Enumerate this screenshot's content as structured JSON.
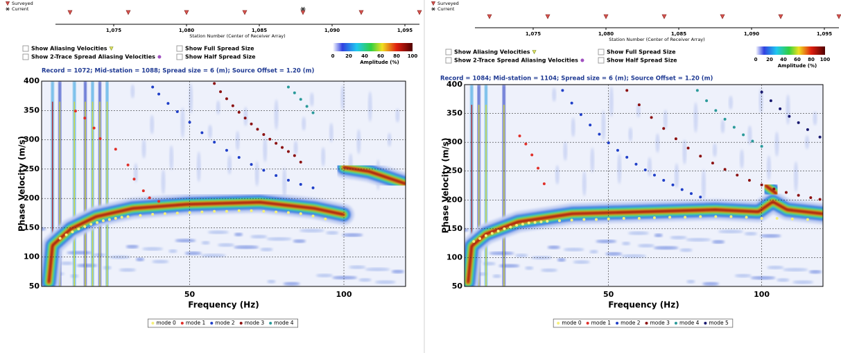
{
  "chart_data": [
    {
      "type": "strip",
      "xlabel": "Station Number (Center of Receiver Array)",
      "xlim": [
        1071,
        1096
      ],
      "xticks": [
        {
          "value": 1075,
          "label": "1,075"
        },
        {
          "value": 1080,
          "label": "1,080"
        },
        {
          "value": 1085,
          "label": "1,085"
        },
        {
          "value": 1090,
          "label": "1,090"
        },
        {
          "value": 1095,
          "label": "1,095"
        }
      ],
      "series": [
        {
          "name": "Surveyed",
          "color": "#d9534f",
          "marker": "triangle",
          "x": [
            1072,
            1076,
            1080,
            1084,
            1088,
            1092,
            1096
          ]
        },
        {
          "name": "Current",
          "color": "#333333",
          "marker": "asterisk",
          "x": [
            1088
          ]
        }
      ]
    },
    {
      "type": "scatter",
      "title": "Record = 1072; Mid-station = 1088; Spread size = 6 (m); Source Offset = 1.20 (m)",
      "checkboxes": [
        "Show Aliasing Velocities",
        "Show 2-Trace Spread Aliasing Velocities",
        "Show Full Spread Size",
        "Show Half Spread Size"
      ],
      "colorbar": {
        "label": "Amplitude (%)",
        "lim": [
          0,
          100
        ],
        "ticks": [
          0,
          20,
          40,
          60,
          80,
          100
        ]
      },
      "xlabel": "Frequency (Hz)",
      "ylabel": "Phase Velocity (m/s)",
      "xlim": [
        2,
        120
      ],
      "ylim": [
        50,
        400
      ],
      "xticks": [
        50,
        100
      ],
      "yticks": [
        50,
        100,
        150,
        200,
        250,
        300,
        350,
        400
      ],
      "grid": true,
      "series": [
        {
          "name": "mode 0",
          "color": "#f5f07a",
          "x": [
            8,
            10,
            12,
            14,
            16,
            18,
            20,
            22,
            24,
            26,
            28,
            30,
            34,
            38,
            42,
            46,
            50,
            54,
            58,
            62,
            66,
            70,
            74,
            78,
            82,
            86,
            90,
            94
          ],
          "values": [
            132,
            138,
            143,
            148,
            152,
            156,
            159,
            162,
            164,
            166,
            168,
            169,
            171,
            173,
            174,
            175,
            176,
            177,
            178,
            178,
            179,
            179,
            178,
            177,
            176,
            174,
            170,
            165
          ]
        },
        {
          "name": "mode 1",
          "color": "#e0302a",
          "x": [
            13,
            16,
            19,
            21,
            26,
            30,
            32,
            35,
            37,
            40
          ],
          "values": [
            349,
            337,
            320,
            302,
            284,
            257,
            233,
            213,
            201,
            195
          ]
        },
        {
          "name": "mode 2",
          "color": "#1f3fc8",
          "x": [
            38,
            40,
            43,
            46,
            50,
            54,
            58,
            62,
            66,
            70,
            74,
            78,
            82,
            86,
            90
          ],
          "values": [
            390,
            378,
            362,
            348,
            330,
            312,
            296,
            282,
            270,
            258,
            248,
            239,
            231,
            224,
            218
          ]
        },
        {
          "name": "mode 3",
          "color": "#8b1010",
          "x": [
            58,
            60,
            62,
            64,
            66,
            68,
            70,
            72,
            74,
            76,
            78,
            80,
            82,
            84,
            86
          ],
          "values": [
            396,
            382,
            370,
            358,
            347,
            337,
            327,
            318,
            309,
            301,
            294,
            287,
            280,
            273,
            262
          ]
        },
        {
          "name": "mode 4",
          "color": "#2a9a9a",
          "x": [
            82,
            84,
            86,
            88,
            90
          ],
          "values": [
            390,
            380,
            369,
            357,
            346
          ]
        }
      ]
    },
    {
      "type": "strip",
      "xlabel": "Station Number (Center of Receiver Array)",
      "xlim": [
        1071,
        1096
      ],
      "xticks": [
        {
          "value": 1075,
          "label": "1,075"
        },
        {
          "value": 1080,
          "label": "1,080"
        },
        {
          "value": 1085,
          "label": "1,085"
        },
        {
          "value": 1090,
          "label": "1,090"
        },
        {
          "value": 1095,
          "label": "1,095"
        }
      ],
      "series": [
        {
          "name": "Surveyed",
          "color": "#d9534f",
          "marker": "triangle",
          "x": [
            1072,
            1076,
            1080,
            1084,
            1088,
            1092,
            1096
          ]
        },
        {
          "name": "Current",
          "color": "#333333",
          "marker": "asterisk",
          "x": []
        }
      ]
    },
    {
      "type": "scatter",
      "title": "Record = 1084; Mid-station = 1104; Spread size = 6 (m); Source Offset = 1.20 (m)",
      "checkboxes": [
        "Show Aliasing Velocities",
        "Show 2-Trace Spread Aliasing Velocities",
        "Show Full Spread Size",
        "Show Half Spread Size"
      ],
      "colorbar": {
        "label": "Amplitude (%)",
        "lim": [
          0,
          100
        ],
        "ticks": [
          0,
          20,
          40,
          60,
          80,
          100
        ]
      },
      "xlabel": "Frequency (Hz)",
      "ylabel": "Phase Velocity (m/s)",
      "xlim": [
        3,
        120
      ],
      "ylim": [
        50,
        400
      ],
      "xticks": [
        50,
        100
      ],
      "yticks": [
        50,
        100,
        150,
        200,
        250,
        300,
        350,
        400
      ],
      "grid": true,
      "series": [
        {
          "name": "mode 0",
          "color": "#f5f07a",
          "x": [
            6,
            8,
            10,
            12,
            14,
            16,
            18,
            20,
            22,
            24,
            26,
            28,
            30,
            34,
            38,
            42,
            46,
            50,
            55,
            60,
            65,
            70,
            75,
            80,
            85,
            90,
            95,
            100,
            105,
            110,
            115
          ],
          "values": [
            128,
            133,
            138,
            142,
            146,
            150,
            153,
            156,
            158,
            160,
            161,
            162,
            163,
            164,
            165,
            166,
            166,
            167,
            168,
            168,
            169,
            170,
            170,
            171,
            171,
            171,
            170,
            168,
            168,
            167,
            166
          ]
        },
        {
          "name": "mode 1",
          "color": "#e0302a",
          "x": [
            21,
            23,
            25,
            27,
            29
          ],
          "values": [
            311,
            297,
            278,
            255,
            228
          ]
        },
        {
          "name": "mode 2",
          "color": "#1f3fc8",
          "x": [
            35,
            38,
            41,
            44,
            47,
            50,
            53,
            56,
            59,
            62,
            65,
            68,
            71,
            74,
            77,
            80
          ],
          "values": [
            390,
            368,
            348,
            330,
            314,
            299,
            286,
            274,
            262,
            252,
            243,
            234,
            226,
            218,
            211,
            205
          ]
        },
        {
          "name": "mode 3",
          "color": "#8b1010",
          "x": [
            56,
            60,
            64,
            68,
            72,
            76,
            80,
            84,
            88,
            92,
            96,
            100,
            104,
            108,
            112,
            116,
            119
          ],
          "values": [
            390,
            365,
            343,
            324,
            306,
            290,
            276,
            264,
            253,
            243,
            234,
            226,
            219,
            213,
            208,
            204,
            201
          ]
        },
        {
          "name": "mode 4",
          "color": "#2a9a9a",
          "x": [
            79,
            82,
            85,
            88,
            91,
            94,
            97,
            100
          ],
          "values": [
            390,
            372,
            355,
            340,
            326,
            313,
            302,
            293
          ]
        },
        {
          "name": "mode 5",
          "color": "#1a1a70",
          "x": [
            100,
            103,
            106,
            109,
            112,
            115,
            119
          ],
          "values": [
            387,
            372,
            358,
            345,
            334,
            322,
            309
          ]
        }
      ]
    }
  ]
}
